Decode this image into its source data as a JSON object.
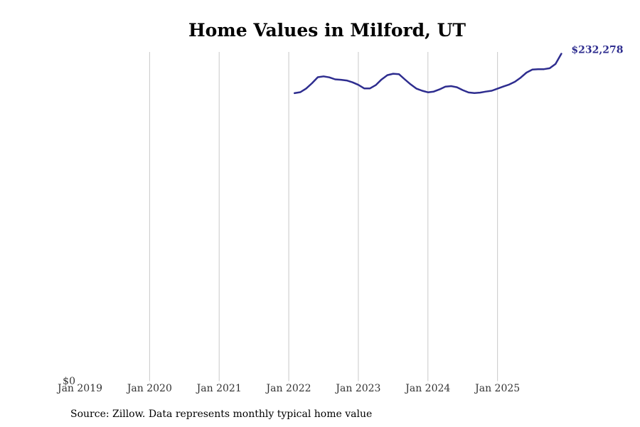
{
  "chart_data": {
    "type": "line",
    "title": "Home Values in Milford, UT",
    "xlabel": "",
    "ylabel": "",
    "x_ticks": [
      "Jan 2019",
      "Jan 2020",
      "Jan 2021",
      "Jan 2022",
      "Jan 2023",
      "Jan 2024",
      "Jan 2025"
    ],
    "x_range": [
      2019.0,
      2026.0
    ],
    "y_ticks": [
      "$0"
    ],
    "ylim": [
      0,
      232278
    ],
    "grid": "vertical",
    "series": [
      {
        "name": "Typical home value",
        "color": "#2e2d8f",
        "x": [
          2022.083,
          2022.167,
          2022.25,
          2022.333,
          2022.417,
          2022.5,
          2022.583,
          2022.667,
          2022.75,
          2022.833,
          2022.917,
          2023.0,
          2023.083,
          2023.167,
          2023.25,
          2023.333,
          2023.417,
          2023.5,
          2023.583,
          2023.667,
          2023.75,
          2023.833,
          2023.917,
          2024.0,
          2024.083,
          2024.167,
          2024.25,
          2024.333,
          2024.417,
          2024.5,
          2024.583,
          2024.667,
          2024.75,
          2024.833,
          2024.917,
          2025.0,
          2025.083,
          2025.167,
          2025.25,
          2025.333,
          2025.417,
          2025.5,
          2025.583,
          2025.667,
          2025.75,
          2025.833,
          2025.917
        ],
        "values": [
          204300,
          205000,
          207600,
          211300,
          215600,
          216200,
          215500,
          214100,
          213800,
          213300,
          212000,
          210200,
          207700,
          207700,
          210000,
          214000,
          217100,
          218100,
          217800,
          214100,
          210600,
          207600,
          206000,
          204900,
          205400,
          207000,
          208900,
          209300,
          208500,
          206500,
          204800,
          204400,
          204700,
          205400,
          206000,
          207500,
          209000,
          210400,
          212400,
          215300,
          218900,
          221000,
          221300,
          221300,
          222000,
          225000,
          232278
        ]
      }
    ],
    "end_label": "$232,278"
  },
  "source_note": "Source: Zillow. Data represents monthly typical home value"
}
